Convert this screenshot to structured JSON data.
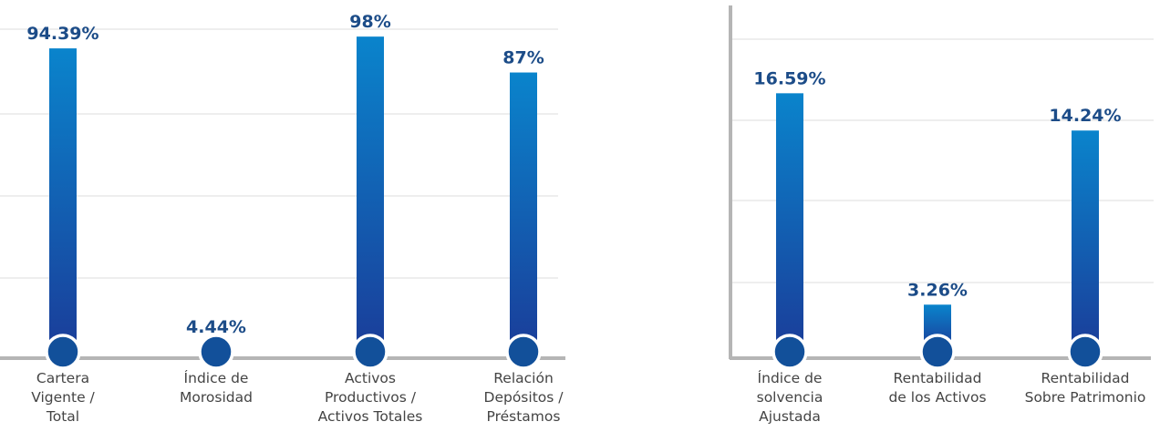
{
  "colors": {
    "bar_top": "#0a84cc",
    "bar_bottom": "#1a3e9a",
    "value_text": "#1c4c88",
    "label_text": "#444444",
    "baseline": "#b5b5b5",
    "gridline": "#e3e3e3",
    "marker": "#12509a"
  },
  "chart_data": [
    {
      "type": "bar",
      "title": "",
      "xlabel": "",
      "ylabel": "",
      "ylim": [
        0,
        100
      ],
      "grid": true,
      "categories": [
        [
          "Cartera",
          "Vigente /",
          "Total"
        ],
        [
          "Índice de",
          "Morosidad"
        ],
        [
          "Activos",
          "Productivos /",
          "Activos Totales"
        ],
        [
          "Relación",
          "Depósitos /",
          "Préstamos"
        ]
      ],
      "values": [
        94.39,
        4.44,
        98,
        87
      ],
      "value_labels": [
        "94.39%",
        "4.44%",
        "98%",
        "87%"
      ]
    },
    {
      "type": "bar",
      "title": "",
      "xlabel": "",
      "ylabel": "",
      "ylim": [
        0,
        20
      ],
      "grid": true,
      "categories": [
        [
          "Índice de",
          "solvencia",
          "Ajustada"
        ],
        [
          "Rentabilidad",
          "de los Activos"
        ],
        [
          "Rentabilidad",
          "Sobre Patrimonio"
        ]
      ],
      "values": [
        16.59,
        3.26,
        14.24
      ],
      "value_labels": [
        "16.59%",
        "3.26%",
        "14.24%"
      ]
    }
  ]
}
